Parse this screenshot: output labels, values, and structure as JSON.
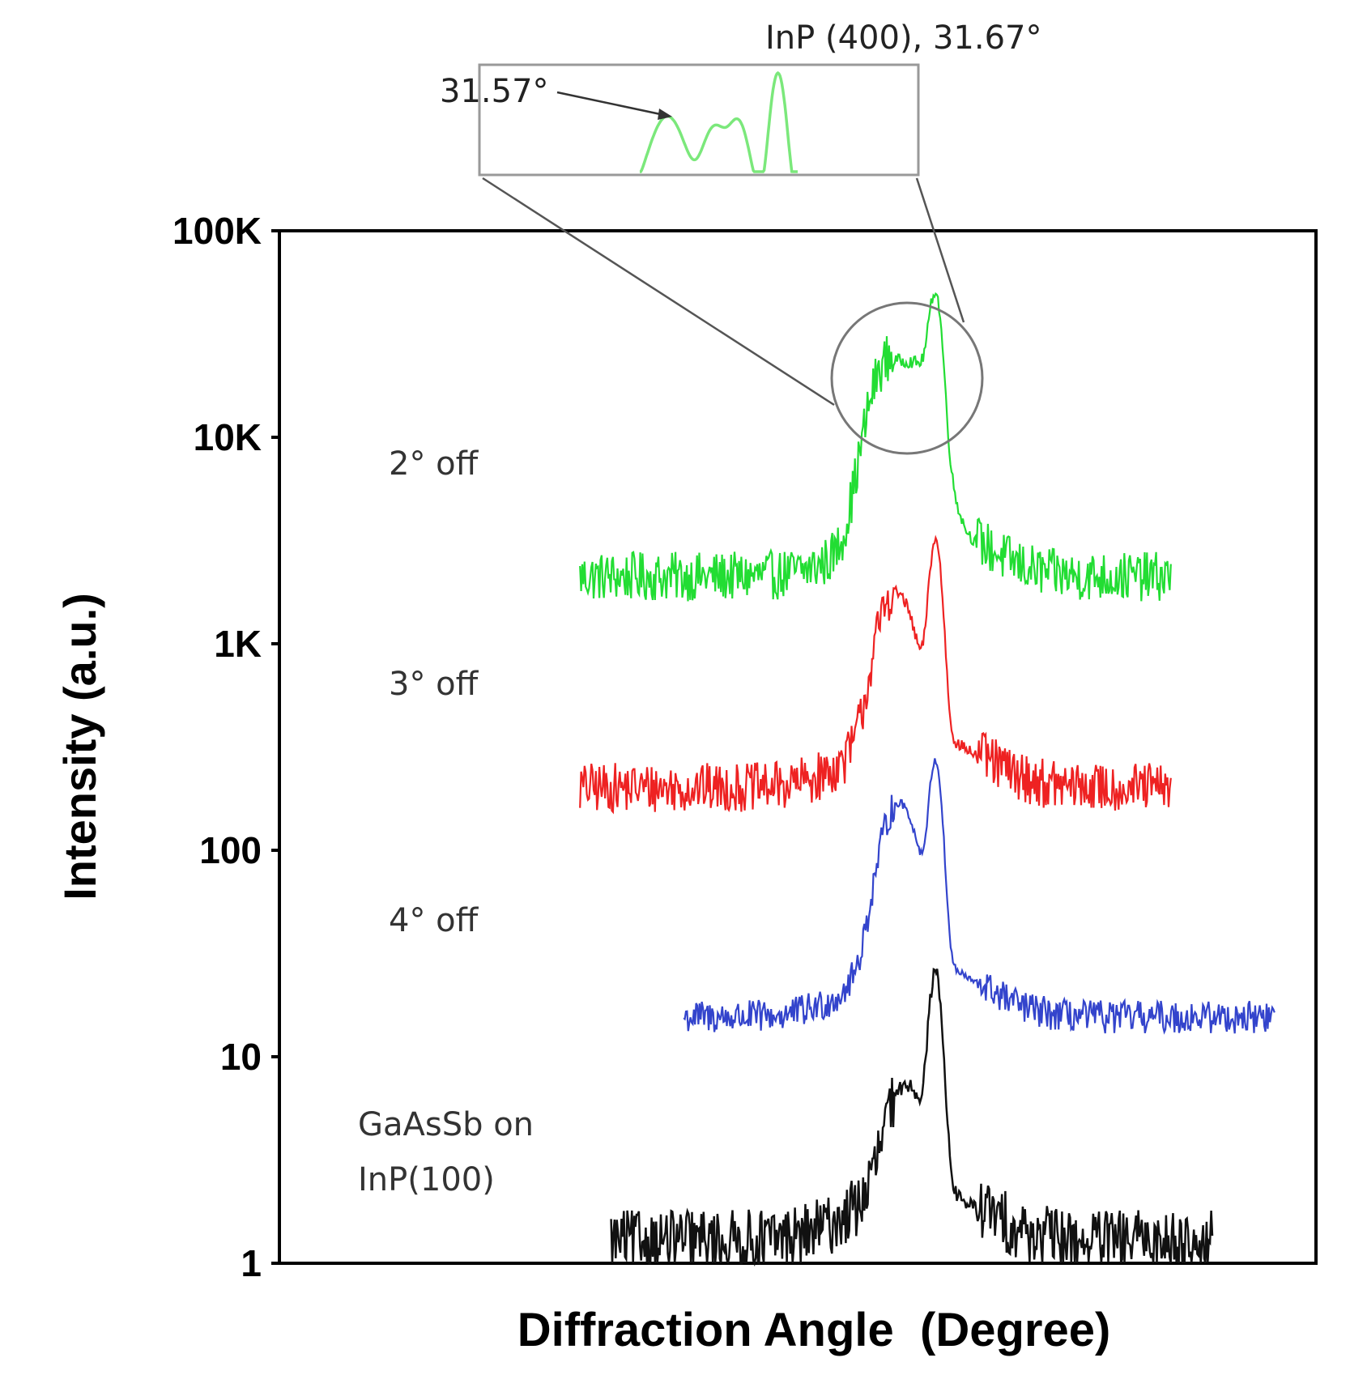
{
  "chart_data": {
    "type": "line",
    "title": "",
    "xlabel": "Diffraction Angle  (Degree)",
    "ylabel": "Intensity (a.u.)",
    "yscale": "log",
    "ylim": [
      1,
      100000
    ],
    "yticks": [
      {
        "value": 1,
        "label": "1"
      },
      {
        "value": 10,
        "label": "10"
      },
      {
        "value": 100,
        "label": "100"
      },
      {
        "value": 1000,
        "label": "1K"
      },
      {
        "value": 10000,
        "label": "10K"
      },
      {
        "value": 100000,
        "label": "100K"
      }
    ],
    "xlim": [
      0,
      100
    ],
    "x_ticks_shown": false,
    "series": [
      {
        "name": "2° off",
        "color": "#22dd33",
        "x_range": [
          29,
          86
        ],
        "baseline": 2000,
        "noise_decades": 0.12,
        "peaks": [
          {
            "x": 58.5,
            "value": 17000,
            "label": "31.57°"
          },
          {
            "x": 61.8,
            "value": 16000
          },
          {
            "x": 63.3,
            "value": 36000,
            "label": "InP (400), 31.67°"
          }
        ]
      },
      {
        "name": "3° off",
        "color": "#ee2222",
        "x_range": [
          29,
          86
        ],
        "baseline": 190,
        "noise_decades": 0.12,
        "peaks": [
          {
            "x": 59.5,
            "value": 1400
          },
          {
            "x": 63.3,
            "value": 2700
          }
        ]
      },
      {
        "name": "4° off",
        "color": "#3344cc",
        "x_range": [
          39,
          96
        ],
        "baseline": 15,
        "noise_decades": 0.08,
        "peaks": [
          {
            "x": 59.8,
            "value": 140
          },
          {
            "x": 63.3,
            "value": 230
          }
        ]
      },
      {
        "name": "GaAsSb on InP(100)",
        "color": "#111111",
        "x_range": [
          32,
          90
        ],
        "baseline": 1.2,
        "noise_decades": 0.15,
        "peaks": [
          {
            "x": 60.5,
            "value": 5
          },
          {
            "x": 63.3,
            "value": 22
          }
        ]
      }
    ],
    "series_labels": [
      {
        "text": "2° off"
      },
      {
        "text": "3° off"
      },
      {
        "text": "4° off"
      },
      {
        "text": "GaAsSb on",
        "text2": "InP(100)"
      }
    ],
    "inset": {
      "annotation_left": "31.57°",
      "annotation_top": "InP (400), 31.67°",
      "zoom_of_series": "2° off"
    }
  }
}
